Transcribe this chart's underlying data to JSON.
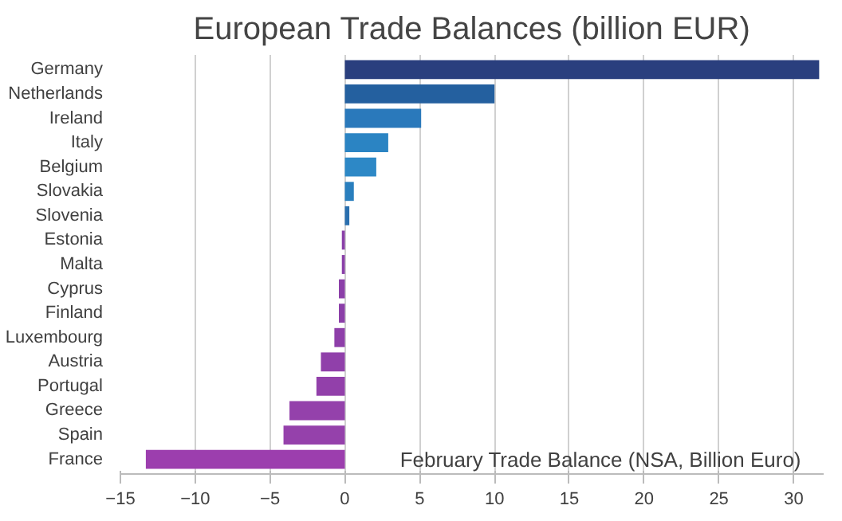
{
  "chart_data": {
    "type": "bar",
    "orientation": "horizontal",
    "title": "European Trade Balances (billion EUR)",
    "categories": [
      "Germany",
      "Netherlands",
      "Ireland",
      "Italy",
      "Belgium",
      "Slovakia",
      "Slovenia",
      "Estonia",
      "Malta",
      "Cyprus",
      "Finland",
      "Luxembourg",
      "Austria",
      "Portugal",
      "Greece",
      "Spain",
      "France"
    ],
    "values": [
      31.7,
      10.0,
      5.1,
      2.9,
      2.1,
      0.6,
      0.3,
      -0.2,
      -0.2,
      -0.4,
      -0.4,
      -0.7,
      -1.6,
      -1.9,
      -3.7,
      -4.1,
      -13.3
    ],
    "colors": [
      "#2a3f7e",
      "#24609f",
      "#2a79bb",
      "#2b84c3",
      "#2d88c6",
      "#2a7fbe",
      "#2a6fae",
      "#8a3fa8",
      "#8a3fa8",
      "#8b3fa8",
      "#8b3fa8",
      "#8e3fa9",
      "#9040aa",
      "#9240aa",
      "#9441ab",
      "#9541ab",
      "#9c3eae"
    ],
    "xlim": [
      -15,
      32
    ],
    "xticks": [
      -15,
      -10,
      -5,
      0,
      5,
      10,
      15,
      20,
      25,
      30
    ],
    "grid": "x",
    "annotations": [
      "February Trade Balance (NSA, Billion Euro)"
    ]
  }
}
